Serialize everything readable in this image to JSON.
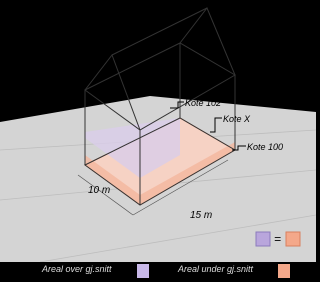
{
  "labels": {
    "kote_102": "Kote 102",
    "kote_x": "Kote X",
    "kote_100": "Kote 100",
    "width": "10 m",
    "length": "15 m",
    "equals": "="
  },
  "legend": [
    {
      "text": "Areal over gj.snitt"
    },
    {
      "text": "Areal under gj.snitt"
    }
  ]
}
